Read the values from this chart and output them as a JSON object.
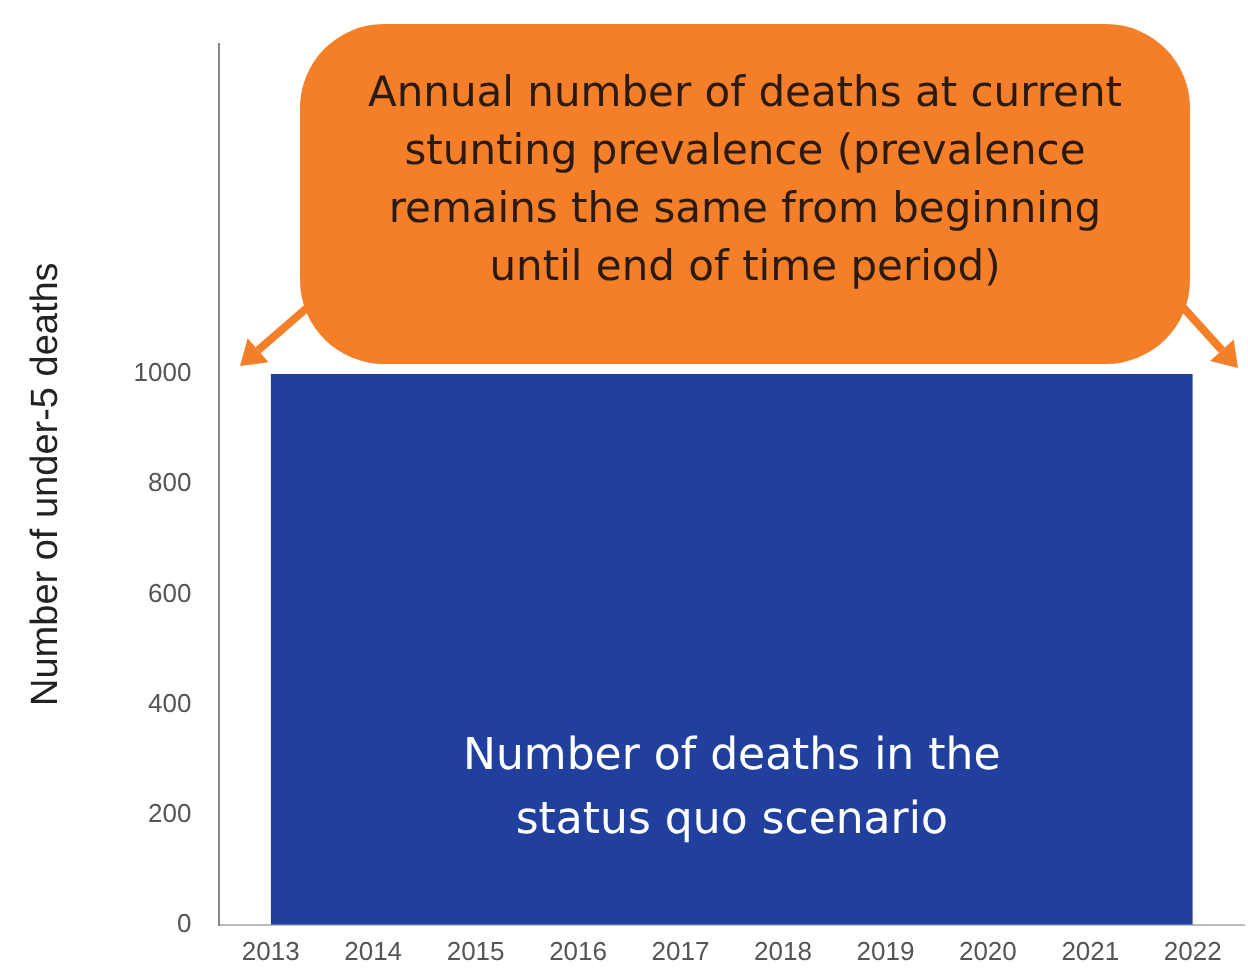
{
  "chart_data": {
    "type": "area",
    "categories": [
      "2013",
      "2014",
      "2015",
      "2016",
      "2017",
      "2018",
      "2019",
      "2020",
      "2021",
      "2022"
    ],
    "series": [
      {
        "name": "Number of deaths in the status quo scenario",
        "color": "#213f9d",
        "values": [
          1000,
          1000,
          1000,
          1000,
          1000,
          1000,
          1000,
          1000,
          1000,
          1000
        ]
      }
    ],
    "ylabel": "Number of under-5 deaths",
    "ylim": [
      0,
      1600
    ],
    "yticks": [
      0,
      200,
      400,
      600,
      800,
      1000
    ],
    "grid": false,
    "legend": false,
    "marker": "none",
    "annotations": [
      "Annual number of deaths at current stunting prevalence (prevalence remains the same from beginning until end of time period)"
    ]
  }
}
